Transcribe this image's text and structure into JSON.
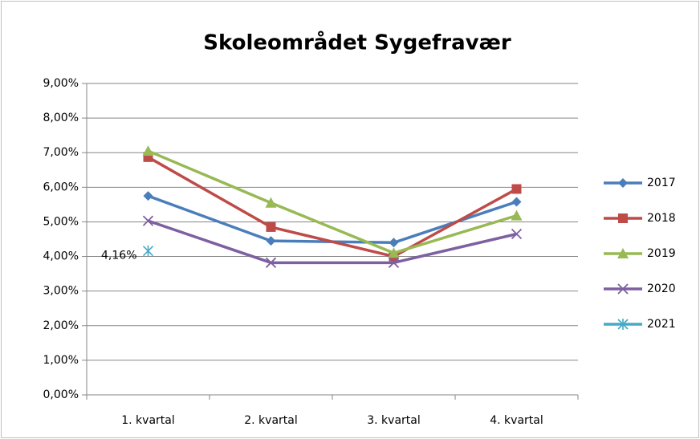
{
  "chart_data": {
    "type": "line",
    "title": "Skoleområdet Sygefravær",
    "categories": [
      "1. kvartal",
      "2. kvartal",
      "3. kvartal",
      "4. kvartal"
    ],
    "series": [
      {
        "name": "2017",
        "color": "#4a7ebb",
        "marker": "diamond",
        "values": [
          5.75,
          4.45,
          4.4,
          5.58
        ]
      },
      {
        "name": "2018",
        "color": "#be4b48",
        "marker": "square",
        "values": [
          6.87,
          4.85,
          4.0,
          5.95
        ]
      },
      {
        "name": "2019",
        "color": "#98b954",
        "marker": "triangle",
        "values": [
          7.05,
          5.55,
          4.1,
          5.18
        ]
      },
      {
        "name": "2020",
        "color": "#7d60a0",
        "marker": "x",
        "values": [
          5.03,
          3.82,
          3.82,
          4.65
        ]
      },
      {
        "name": "2021",
        "color": "#46aac5",
        "marker": "star",
        "values": [
          4.16,
          null,
          null,
          null
        ],
        "value_labels": [
          "4,16%",
          null,
          null,
          null
        ]
      }
    ],
    "ylim": [
      0,
      9
    ],
    "yticks": [
      {
        "value": 0,
        "label": "0,00%"
      },
      {
        "value": 1,
        "label": "1,00%"
      },
      {
        "value": 2,
        "label": "2,00%"
      },
      {
        "value": 3,
        "label": "3,00%"
      },
      {
        "value": 4,
        "label": "4,00%"
      },
      {
        "value": 5,
        "label": "5,00%"
      },
      {
        "value": 6,
        "label": "6,00%"
      },
      {
        "value": 7,
        "label": "7,00%"
      },
      {
        "value": 8,
        "label": "8,00%"
      },
      {
        "value": 9,
        "label": "9,00%"
      }
    ],
    "grid": true,
    "legend": "right"
  }
}
